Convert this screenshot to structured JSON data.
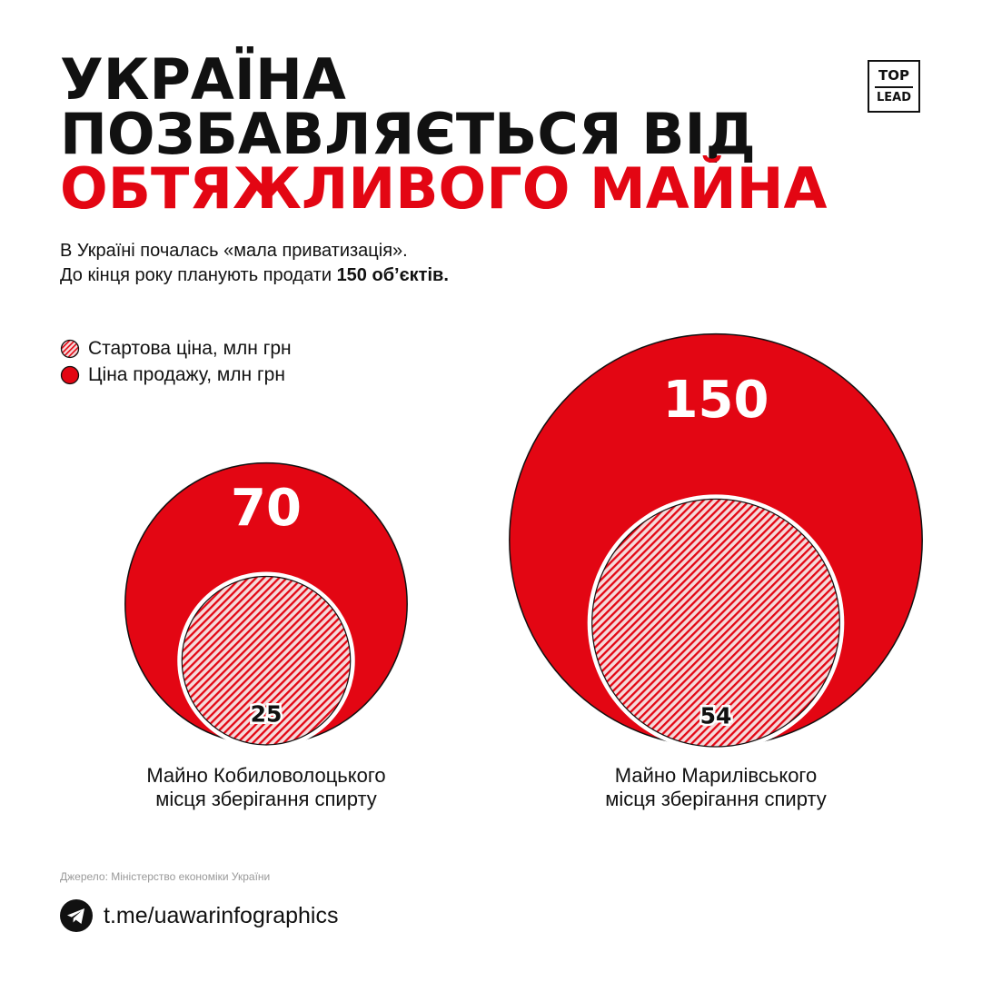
{
  "title": {
    "line1": "УКРАЇНА",
    "line2": "ПОЗБАВЛЯЄТЬСЯ ВІД",
    "line3": "ОБТЯЖЛИВОГО МАЙНА"
  },
  "logo": {
    "line1": "TOP",
    "line2": "LEAD"
  },
  "subtitle": {
    "line1": "В Україні почалась «мала приватизація».",
    "line2_prefix": "До кінця року планують продати ",
    "line2_bold": "150 об’єктів."
  },
  "legend": {
    "start_price": "Стартова ціна, млн грн",
    "sale_price": "Ціна продажу, млн грн"
  },
  "colors": {
    "accent": "#e30613",
    "text": "#111111",
    "hatch_bg": "#f5dadb"
  },
  "chart_data": {
    "type": "bubble",
    "categories": [
      "Майно Кобиловолоцького місця зберігання спирту",
      "Майно Марилівського місця зберігання спирту"
    ],
    "series": [
      {
        "name": "Стартова ціна, млн грн",
        "values": [
          25,
          54
        ]
      },
      {
        "name": "Ціна продажу, млн грн",
        "values": [
          70,
          150
        ]
      }
    ]
  },
  "items": [
    {
      "label_line1": "Майно Кобиловолоцького",
      "label_line2": "місця зберігання спирту",
      "start": "25",
      "sale": "70"
    },
    {
      "label_line1": "Майно Марилівського",
      "label_line2": "місця зберігання спирту",
      "start": "54",
      "sale": "150"
    }
  ],
  "source": "Джерело: Міністерство економіки України",
  "telegram": {
    "icon": "telegram-icon",
    "link": "t.me/uawarinfographics"
  }
}
